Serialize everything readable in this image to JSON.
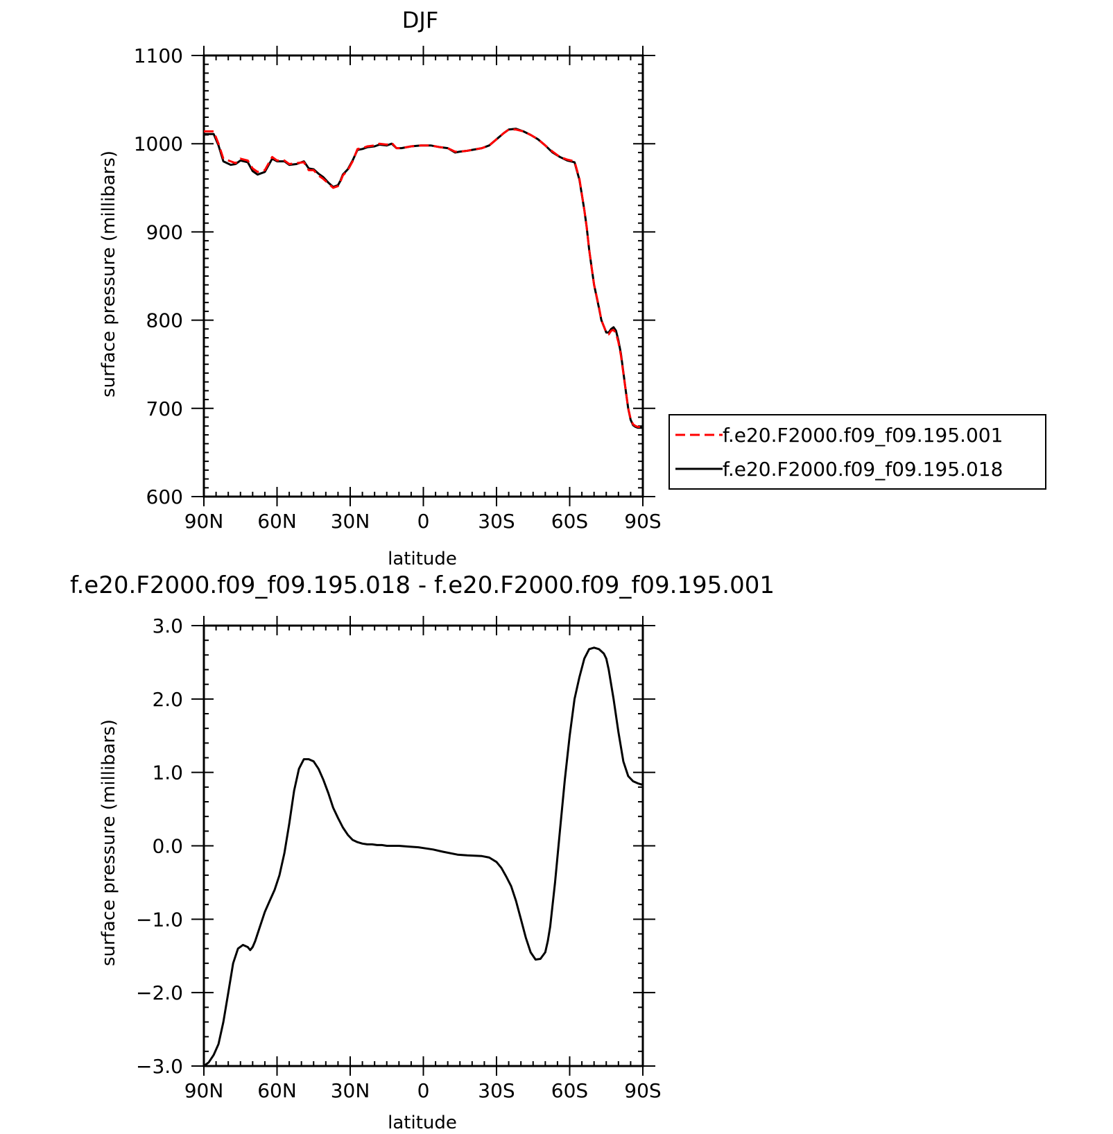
{
  "colors": {
    "red_dashed": "#ff0000",
    "black": "#000000",
    "background": "#ffffff"
  },
  "chart_data": [
    {
      "type": "line",
      "title": "DJF",
      "xlabel": "latitude",
      "ylabel": "surface pressure (millibars)",
      "xlim": [
        90,
        -90
      ],
      "ylim": [
        600,
        1100
      ],
      "x_tick_values": [
        90,
        60,
        30,
        0,
        -30,
        -60,
        -90
      ],
      "x_tick_labels": [
        "90N",
        "60N",
        "30N",
        "0",
        "30S",
        "60S",
        "90S"
      ],
      "y_tick_values": [
        600,
        700,
        800,
        900,
        1000,
        1100
      ],
      "y_tick_labels": [
        "600",
        "700",
        "800",
        "900",
        "1000",
        "1100"
      ],
      "legend": "right",
      "series": [
        {
          "name": "f.e20.F2000.f09_f09.195.001",
          "color": "#ff0000",
          "dash": "dashed",
          "x": [
            90,
            86,
            84,
            82,
            79,
            77,
            75,
            72,
            70,
            68,
            65,
            62,
            60,
            57,
            55,
            52,
            49,
            47,
            45,
            43,
            41,
            39,
            37,
            35,
            34,
            33,
            31,
            29,
            27,
            25,
            23,
            20,
            18,
            15,
            13,
            11,
            9,
            5,
            1,
            -3,
            -7,
            -10,
            -13,
            -15,
            -18,
            -20,
            -24,
            -27,
            -30,
            -33,
            -35,
            -38,
            -41,
            -44,
            -47,
            -50,
            -53,
            -56,
            -59,
            -62,
            -64,
            -66,
            -67,
            -68,
            -69,
            -70,
            -72,
            -73,
            -75,
            -76,
            -77,
            -78,
            -79,
            -80,
            -81,
            -82,
            -83,
            -84,
            -85,
            -86,
            -87,
            -88,
            -89,
            -90
          ],
          "values": [
            1014,
            1014,
            1000,
            983,
            980,
            978,
            983,
            981,
            972,
            968,
            970,
            985,
            981,
            981,
            977,
            978,
            979,
            970,
            970,
            964,
            960,
            955,
            950,
            952,
            957,
            964,
            970,
            980,
            994,
            995,
            997,
            998,
            1000,
            999,
            1001,
            995,
            995,
            997,
            998,
            998,
            996,
            995,
            991,
            991,
            992,
            993,
            995,
            998,
            1005,
            1012,
            1016,
            1016,
            1014,
            1010,
            1005,
            998,
            991,
            985,
            982,
            980,
            960,
            925,
            905,
            880,
            860,
            840,
            815,
            800,
            786,
            784,
            788,
            789,
            785,
            775,
            760,
            740,
            720,
            700,
            688,
            682,
            680,
            679,
            679,
            679
          ]
        },
        {
          "name": "f.e20.F2000.f09_f09.195.018",
          "color": "#000000",
          "dash": "solid",
          "x": [
            90,
            86,
            84,
            82,
            79,
            77,
            75,
            72,
            70,
            68,
            65,
            62,
            60,
            57,
            55,
            52,
            49,
            47,
            45,
            43,
            41,
            39,
            37,
            35,
            34,
            33,
            31,
            29,
            27,
            25,
            23,
            20,
            18,
            15,
            13,
            11,
            9,
            5,
            1,
            -3,
            -7,
            -10,
            -13,
            -15,
            -18,
            -20,
            -24,
            -27,
            -30,
            -33,
            -35,
            -38,
            -41,
            -44,
            -47,
            -50,
            -53,
            -56,
            -59,
            -62,
            -64,
            -66,
            -67,
            -68,
            -69,
            -70,
            -72,
            -73,
            -75,
            -76,
            -77,
            -78,
            -79,
            -80,
            -81,
            -82,
            -83,
            -84,
            -85,
            -86,
            -87,
            -88,
            -89,
            -90
          ],
          "values": [
            1011,
            1011,
            998,
            980,
            976,
            977,
            981,
            979,
            969,
            965,
            968,
            983,
            980,
            980,
            976,
            977,
            980,
            972,
            971,
            966,
            962,
            956,
            951,
            953,
            958,
            965,
            971,
            981,
            993,
            994,
            996,
            997,
            999,
            998,
            1000,
            995,
            995,
            997,
            998,
            998,
            996,
            995,
            990,
            991,
            992,
            993,
            995,
            998,
            1005,
            1012,
            1016,
            1017,
            1014,
            1010,
            1005,
            998,
            990,
            985,
            981,
            979,
            959,
            925,
            905,
            880,
            860,
            840,
            814,
            800,
            786,
            786,
            790,
            792,
            788,
            777,
            762,
            741,
            720,
            700,
            687,
            681,
            679,
            678,
            678,
            678
          ]
        }
      ]
    },
    {
      "type": "line",
      "title": "f.e20.F2000.f09_f09.195.018 - f.e20.F2000.f09_f09.195.001",
      "xlabel": "latitude",
      "ylabel": "surface pressure (millibars)",
      "xlim": [
        90,
        -90
      ],
      "ylim": [
        -3,
        3
      ],
      "x_tick_values": [
        90,
        60,
        30,
        0,
        -30,
        -60,
        -90
      ],
      "x_tick_labels": [
        "90N",
        "60N",
        "30N",
        "0",
        "30S",
        "60S",
        "90S"
      ],
      "y_tick_values": [
        -3,
        -2,
        -1,
        0,
        1,
        2,
        3
      ],
      "y_tick_labels": [
        "−3.0",
        "−2.0",
        "−1.0",
        "0.0",
        "1.0",
        "2.0",
        "3.0"
      ],
      "series": [
        {
          "color": "#000000",
          "dash": "solid",
          "x": [
            90,
            88,
            86,
            84,
            82,
            80,
            78,
            76,
            74,
            72,
            71,
            70,
            69,
            68,
            67,
            65,
            63,
            61,
            59,
            57,
            55,
            53,
            51,
            49,
            47,
            45,
            43,
            41,
            39,
            38,
            37,
            35,
            33,
            31,
            29,
            27,
            25,
            23,
            21,
            19,
            17,
            15,
            13,
            10,
            6,
            2,
            0,
            -4,
            -8,
            -14,
            -18,
            -24,
            -27,
            -30,
            -32,
            -34,
            -36,
            -38,
            -40,
            -42,
            -44,
            -46,
            -48,
            -50,
            -51,
            -52,
            -53,
            -54,
            -56,
            -58,
            -60,
            -62,
            -64,
            -66,
            -68,
            -70,
            -72,
            -74,
            -75,
            -76,
            -77,
            -78,
            -80,
            -82,
            -84,
            -86,
            -88,
            -89,
            -90
          ],
          "values": [
            -3.0,
            -2.95,
            -2.85,
            -2.7,
            -2.4,
            -2.0,
            -1.6,
            -1.4,
            -1.35,
            -1.38,
            -1.42,
            -1.38,
            -1.3,
            -1.2,
            -1.1,
            -0.9,
            -0.75,
            -0.6,
            -0.4,
            -0.1,
            0.3,
            0.75,
            1.05,
            1.18,
            1.18,
            1.15,
            1.05,
            0.9,
            0.72,
            0.62,
            0.52,
            0.38,
            0.25,
            0.15,
            0.08,
            0.05,
            0.03,
            0.02,
            0.02,
            0.01,
            0.01,
            0.0,
            0.0,
            0.0,
            -0.01,
            -0.02,
            -0.03,
            -0.05,
            -0.08,
            -0.12,
            -0.13,
            -0.14,
            -0.16,
            -0.22,
            -0.3,
            -0.42,
            -0.55,
            -0.75,
            -1.0,
            -1.25,
            -1.45,
            -1.55,
            -1.54,
            -1.45,
            -1.3,
            -1.1,
            -0.8,
            -0.5,
            0.2,
            0.9,
            1.5,
            2.0,
            2.3,
            2.55,
            2.68,
            2.7,
            2.68,
            2.62,
            2.55,
            2.4,
            2.2,
            2.0,
            1.55,
            1.15,
            0.95,
            0.88,
            0.85,
            0.84,
            0.83
          ]
        }
      ]
    }
  ]
}
